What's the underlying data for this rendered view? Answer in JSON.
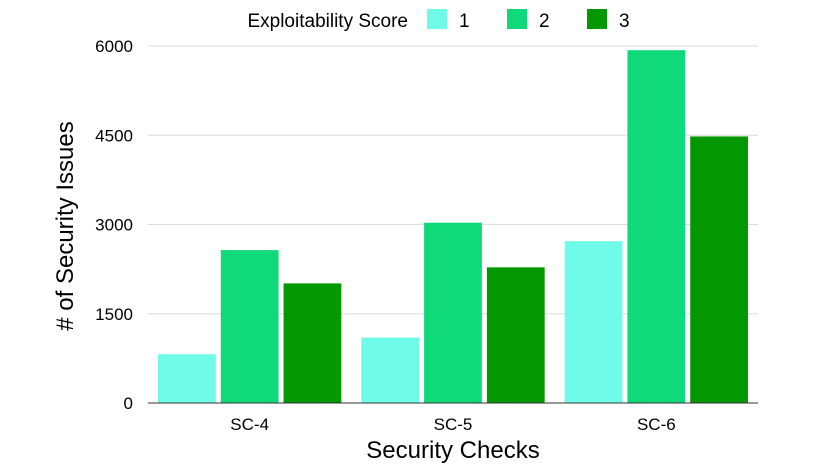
{
  "chart_data": {
    "type": "bar",
    "title": "",
    "xlabel": "Security Checks",
    "ylabel": "# of Security Issues",
    "legend_title": "Exploitability Score",
    "legend_position": "top",
    "categories": [
      "SC-4",
      "SC-5",
      "SC-6"
    ],
    "series": [
      {
        "name": "1",
        "color": "#70fae8",
        "values": [
          820,
          1100,
          2720
        ]
      },
      {
        "name": "2",
        "color": "#10d97a",
        "values": [
          2570,
          3030,
          5930
        ]
      },
      {
        "name": "3",
        "color": "#039702",
        "values": [
          2010,
          2280,
          4480
        ]
      }
    ],
    "ylim": [
      0,
      6000
    ],
    "yticks": [
      0,
      1500,
      3000,
      4500,
      6000
    ],
    "ytick_labels": [
      "0",
      "1500",
      "3000",
      "4500",
      "6000"
    ],
    "grid": true
  }
}
